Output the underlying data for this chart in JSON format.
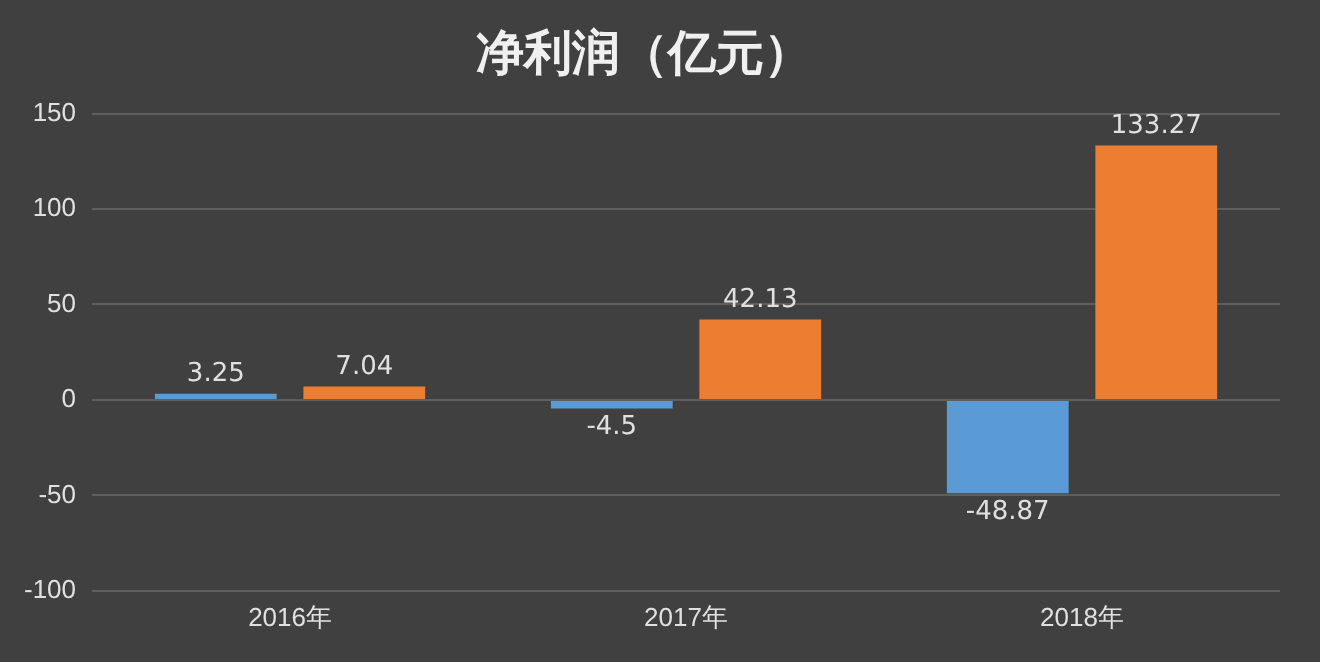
{
  "chart_data": {
    "type": "bar",
    "title": "净利润（亿元）",
    "categories": [
      "2016年",
      "2017年",
      "2018年"
    ],
    "series": [
      {
        "color": "#5b9bd5",
        "values": [
          3.25,
          -4.5,
          -48.87
        ]
      },
      {
        "color": "#ed7d31",
        "values": [
          7.04,
          42.13,
          133.27
        ]
      }
    ],
    "ylim": [
      -100,
      150
    ],
    "yticks": [
      -100,
      -50,
      0,
      50,
      100,
      150
    ],
    "grid": "y",
    "data_labels": true
  }
}
